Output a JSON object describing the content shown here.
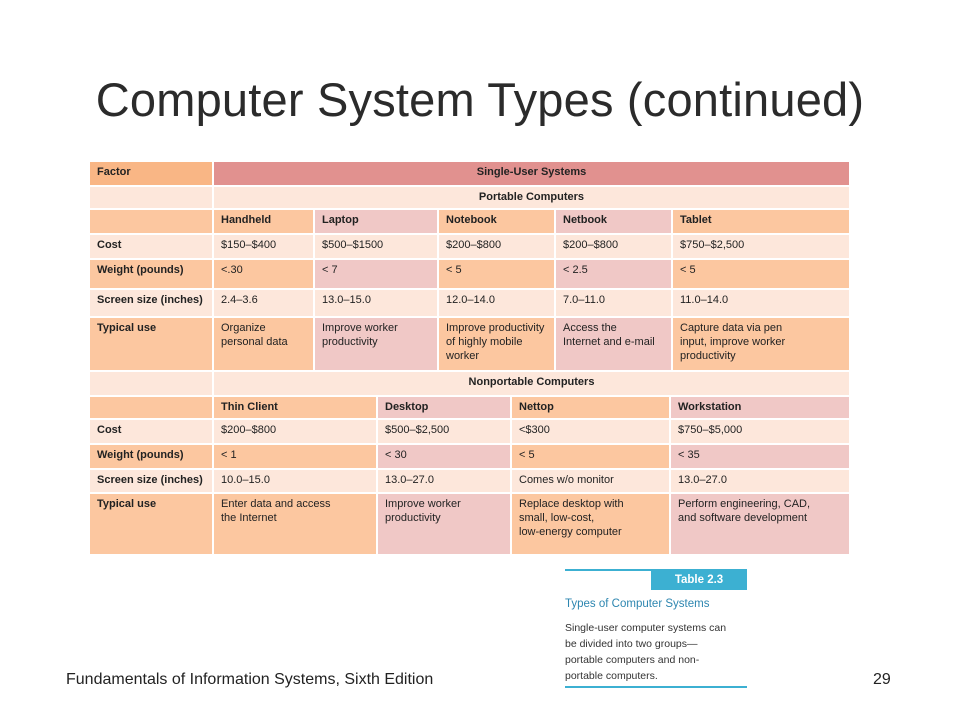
{
  "title": "Computer System Types (continued)",
  "footer": {
    "left": "Fundamentals of Information Systems, Sixth Edition",
    "page": "29"
  },
  "table": {
    "factor_header": "Factor",
    "group_header": "Single-User Systems",
    "portable": {
      "heading": "Portable Computers",
      "columns": [
        "Handheld",
        "Laptop",
        "Notebook",
        "Netbook",
        "Tablet"
      ],
      "rows": [
        {
          "factor": "Cost",
          "values": [
            "$150–$400",
            "$500–$1500",
            "$200–$800",
            "$200–$800",
            "$750–$2,500"
          ]
        },
        {
          "factor": "Weight (pounds)",
          "values": [
            "<.30",
            "< 7",
            "< 5",
            "< 2.5",
            "< 5"
          ]
        },
        {
          "factor": "Screen size (inches)",
          "values": [
            "2.4–3.6",
            "13.0–15.0",
            "12.0–14.0",
            "7.0–11.0",
            "11.0–14.0"
          ]
        },
        {
          "factor": "Typical use",
          "values": [
            "Organize\npersonal data",
            "Improve worker\nproductivity",
            "Improve productivity\nof highly mobile\nworker",
            "Access the\nInternet and e-mail",
            "Capture data via pen\ninput, improve worker\nproductivity"
          ]
        }
      ]
    },
    "nonportable": {
      "heading": "Nonportable Computers",
      "columns": [
        "Thin Client",
        "Desktop",
        "Nettop",
        "Workstation"
      ],
      "rows": [
        {
          "factor": "Cost",
          "values": [
            "$200–$800",
            "$500–$2,500",
            "<$300",
            "$750–$5,000"
          ]
        },
        {
          "factor": "Weight (pounds)",
          "values": [
            "< 1",
            "< 30",
            "< 5",
            "< 35"
          ]
        },
        {
          "factor": "Screen size (inches)",
          "values": [
            "10.0–15.0",
            "13.0–27.0",
            "Comes w/o monitor",
            "13.0–27.0"
          ]
        },
        {
          "factor": "Typical use",
          "values": [
            "Enter data and access\nthe Internet",
            "Improve worker\nproductivity",
            "Replace desktop with\nsmall, low-cost,\nlow-energy computer",
            "Perform engineering, CAD,\nand software development"
          ]
        }
      ]
    }
  },
  "caption": {
    "badge": "Table 2.3",
    "title": "Types of Computer Systems",
    "body": "Single-user computer systems can\nbe divided into two groups—\nportable computers and non-\nportable computers."
  },
  "colors": {
    "orange": "#fcc7a0",
    "pink": "#f0c8c6",
    "light": "#fde7db",
    "group_header": "#e1918f",
    "factor_header": "#f9b685",
    "caption_accent": "#3cb0d2"
  }
}
